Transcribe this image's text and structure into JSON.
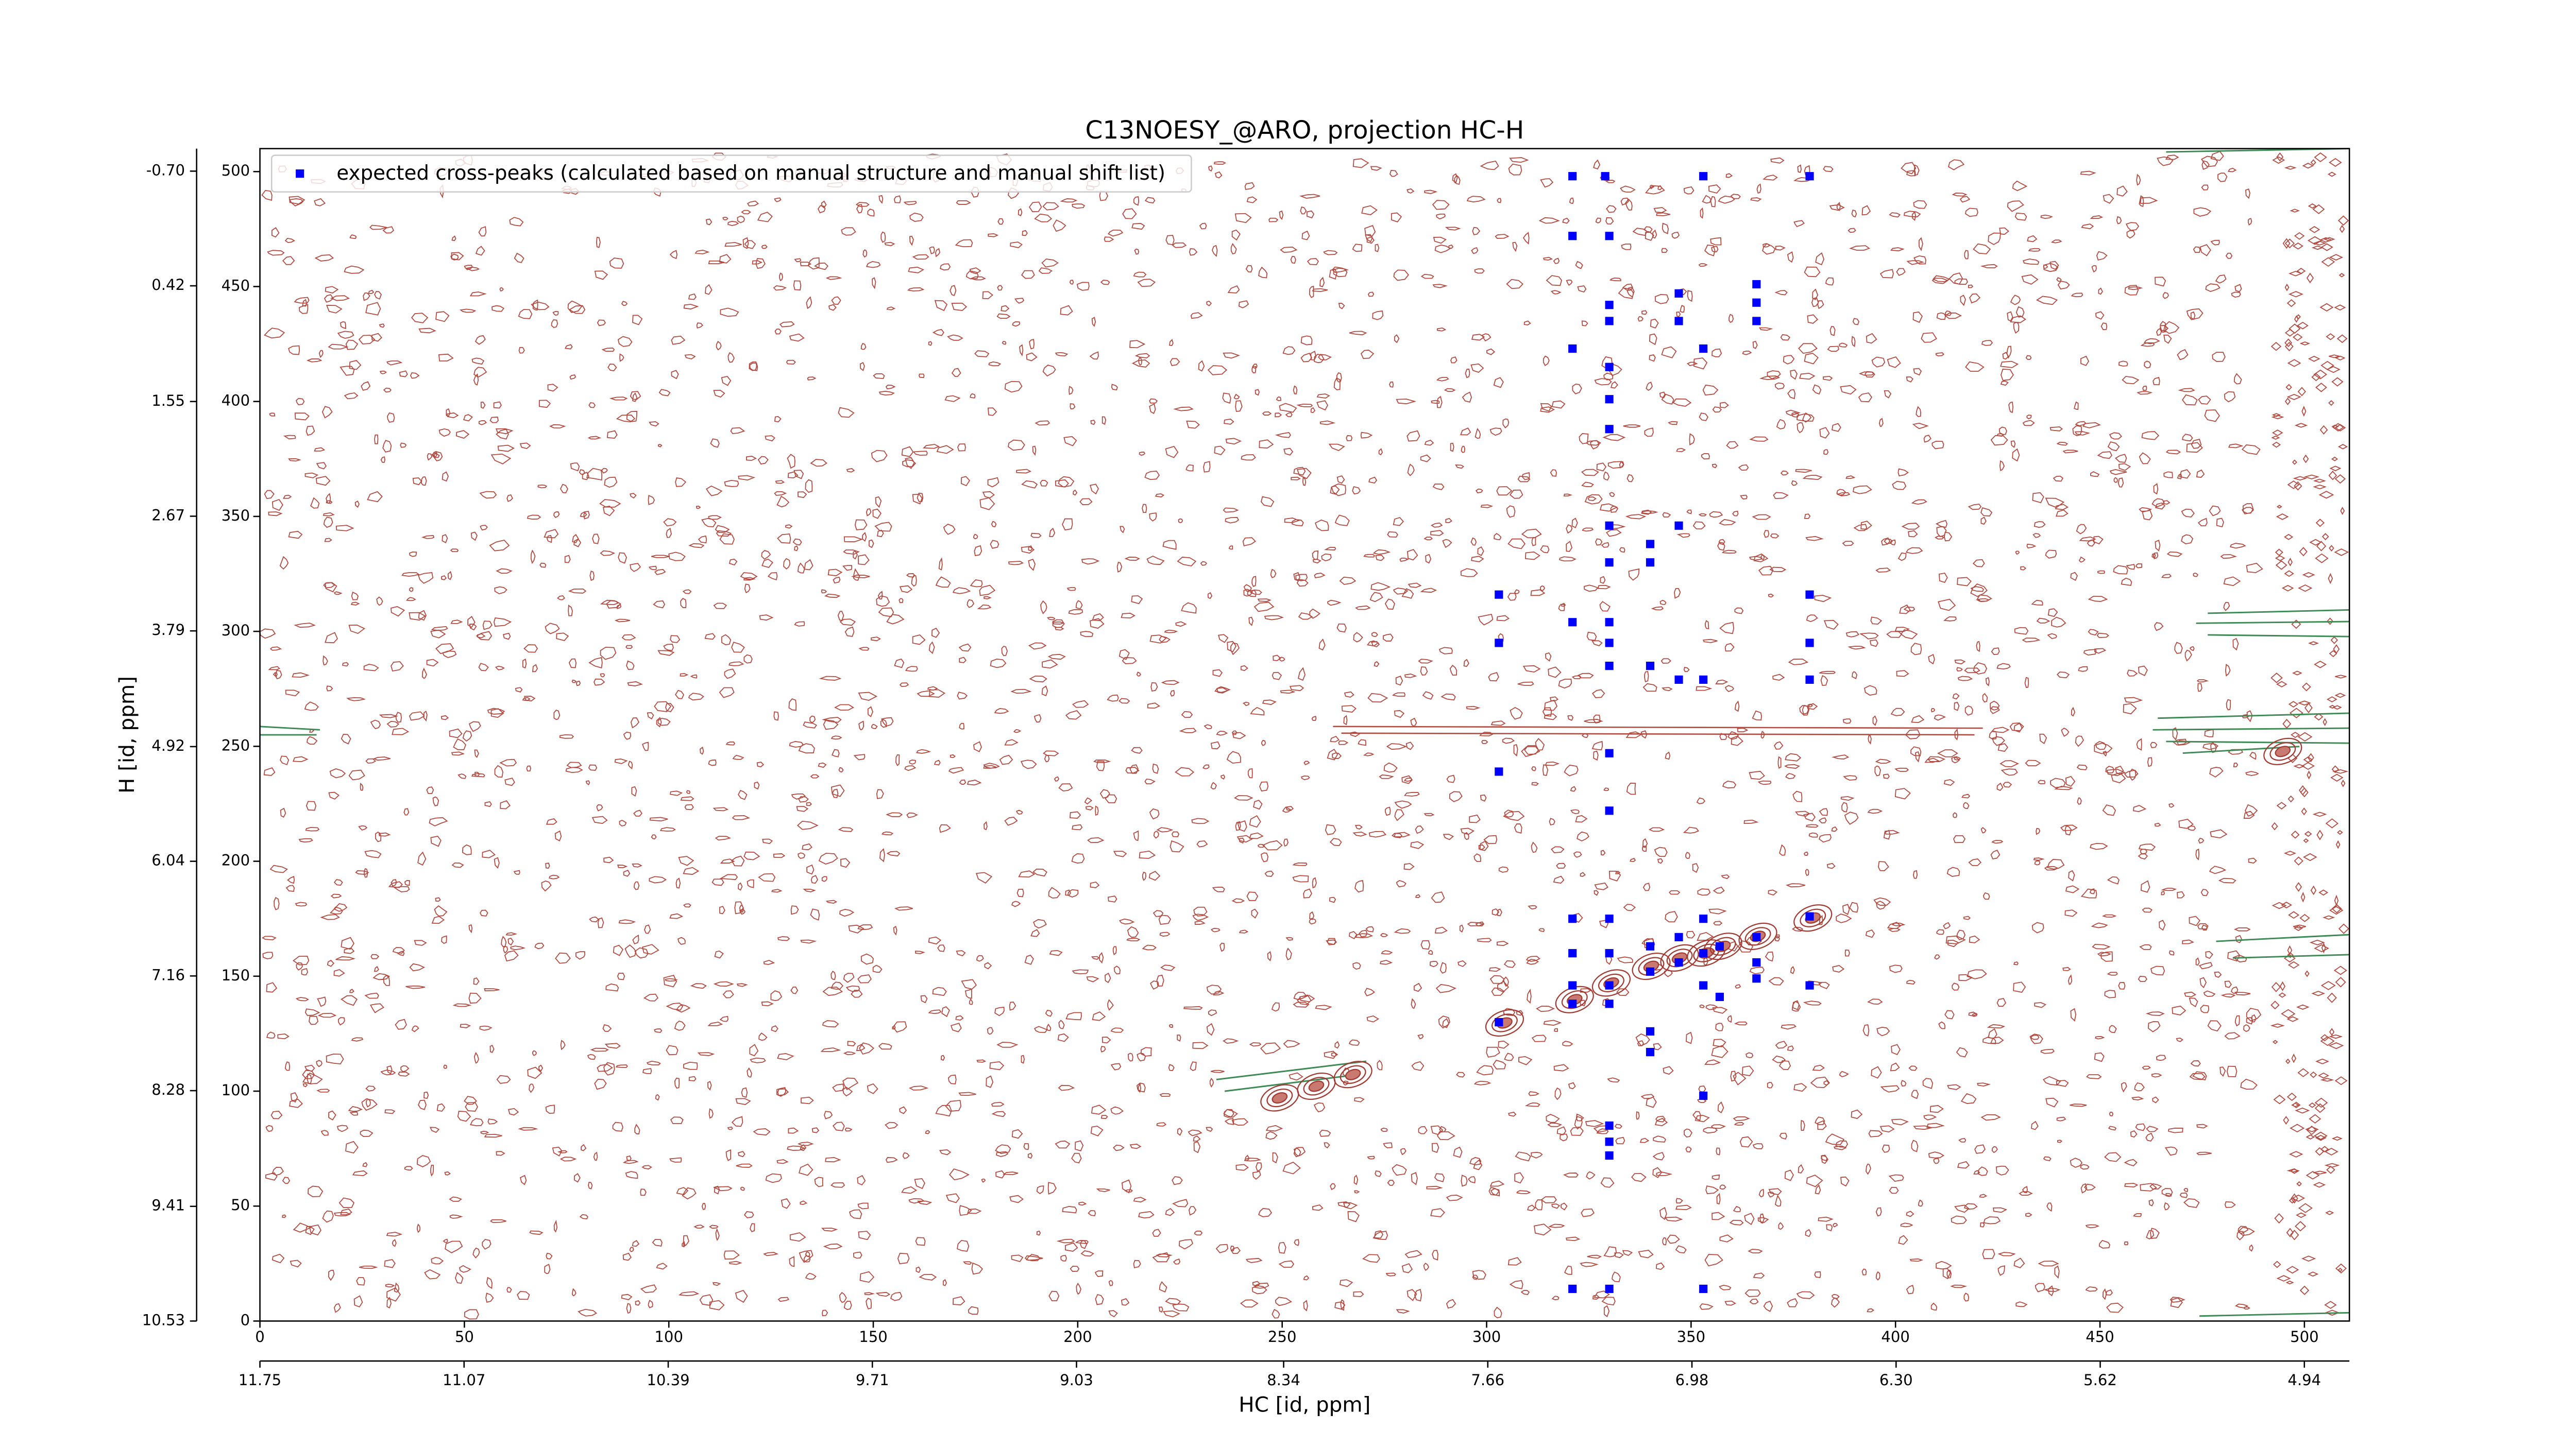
{
  "chart_data": {
    "type": "scatter",
    "title": "C13NOESY_@ARO, projection HC-H",
    "xlabel": "HC [id, ppm]",
    "ylabel": "H [id, ppm]",
    "xlim": [
      0,
      511
    ],
    "ylim": [
      0,
      510
    ],
    "xticks": [
      0,
      50,
      100,
      150,
      200,
      250,
      300,
      350,
      400,
      450,
      500
    ],
    "yticks": [
      0,
      50,
      100,
      150,
      200,
      250,
      300,
      350,
      400,
      450,
      500
    ],
    "x2lim": [
      11.75,
      4.79
    ],
    "x2ticks": [
      11.75,
      11.07,
      10.39,
      9.71,
      9.03,
      8.34,
      7.66,
      6.98,
      {
        "value": 6.3,
        "label": "6.30"
      },
      5.62,
      4.94
    ],
    "y2lim": [
      10.53,
      -0.92
    ],
    "y2ticks": [
      10.53,
      9.41,
      8.28,
      7.16,
      6.04,
      4.92,
      3.79,
      2.67,
      1.55,
      0.42,
      {
        "value": -0.7,
        "label": "-0.70"
      }
    ],
    "legend": "upper left",
    "series": [
      {
        "name": "expected cross-peaks (calculated based on manual structure and manual shift list)",
        "color": "#0000ff",
        "x": [
          321,
          329,
          353,
          379,
          321,
          330,
          330,
          347,
          366,
          366,
          330,
          347,
          366,
          321,
          353,
          330,
          330,
          330,
          330,
          347,
          340,
          330,
          340,
          303,
          379,
          321,
          330,
          303,
          330,
          379,
          330,
          340,
          347,
          353,
          379,
          330,
          303,
          330,
          321,
          330,
          353,
          379,
          347,
          366,
          340,
          357,
          321,
          330,
          353,
          347,
          366,
          340,
          366,
          321,
          330,
          353,
          379,
          357,
          321,
          330,
          303,
          340,
          340,
          353,
          330,
          330,
          330,
          321,
          330,
          353
        ],
        "values": [
          498,
          498,
          498,
          498,
          472,
          472,
          442,
          447,
          451,
          443,
          435,
          435,
          435,
          423,
          423,
          415,
          401,
          388,
          346,
          346,
          338,
          330,
          330,
          316,
          316,
          304,
          304,
          295,
          295,
          295,
          285,
          285,
          279,
          279,
          279,
          247,
          239,
          222,
          175,
          175,
          175,
          176,
          167,
          167,
          163,
          163,
          160,
          160,
          160,
          156,
          156,
          152,
          149,
          146,
          146,
          146,
          146,
          141,
          138,
          138,
          130,
          126,
          117,
          98,
          85,
          78,
          72,
          14,
          14,
          14
        ]
      }
    ]
  }
}
